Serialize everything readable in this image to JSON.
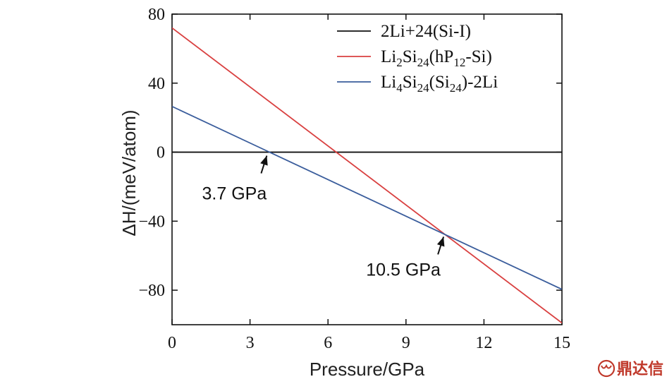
{
  "chart_data": {
    "type": "line",
    "title": "",
    "xlabel": "Pressure/GPa",
    "ylabel": "ΔH/(meV/atom)",
    "xlim": [
      0,
      15
    ],
    "ylim": [
      -100,
      80
    ],
    "xticks": [
      0,
      3,
      6,
      9,
      12,
      15
    ],
    "yticks": [
      80,
      40,
      0,
      -40,
      -80
    ],
    "grid": false,
    "legend_position": "top-right",
    "series": [
      {
        "name": "2Li+24(Si-I)",
        "color": "#111111",
        "x": [
          0,
          15
        ],
        "y": [
          0,
          0
        ]
      },
      {
        "name": "Li2Si24(hP12-Si)",
        "color": "#d94040",
        "x": [
          0,
          15
        ],
        "y": [
          72,
          -99
        ]
      },
      {
        "name": "Li4Si24(Si24)-2Li",
        "color": "#3a5d9c",
        "x": [
          0,
          15
        ],
        "y": [
          26.5,
          -79.5
        ]
      }
    ],
    "annotations": [
      {
        "text": "3.7 GPa",
        "x": 3.7,
        "y": 0
      },
      {
        "text": "10.5 GPa",
        "x": 10.5,
        "y": -47
      }
    ]
  },
  "watermark": {
    "text": "鼎达信"
  }
}
